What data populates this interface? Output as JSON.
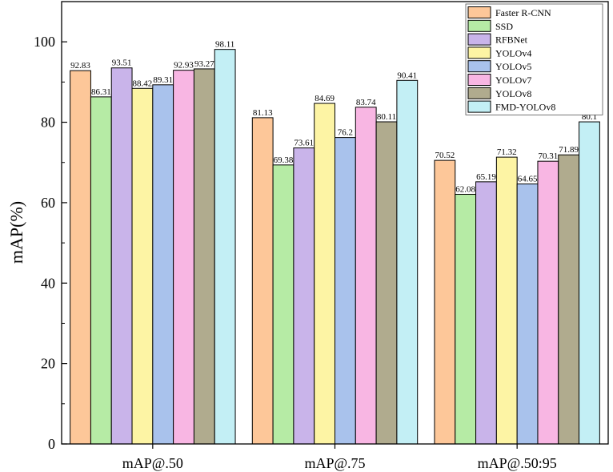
{
  "chart_data": {
    "type": "bar",
    "title": "",
    "xlabel": "",
    "ylabel": "mAP(%)",
    "ylim": [
      0,
      110
    ],
    "yticks": [
      0,
      20,
      40,
      60,
      80,
      100
    ],
    "grid": false,
    "legend_position": "top-right",
    "categories": [
      "mAP@.50",
      "mAP@.75",
      "mAP@.50:95"
    ],
    "series": [
      {
        "name": "Faster R-CNN",
        "color": "#fdc799",
        "values": [
          92.83,
          81.13,
          70.52
        ],
        "labels": [
          "92.83",
          "81.13",
          "70.52"
        ]
      },
      {
        "name": "SSD",
        "color": "#b6eba5",
        "values": [
          86.31,
          69.38,
          62.08
        ],
        "labels": [
          "86.31",
          "69.38",
          "62.08"
        ]
      },
      {
        "name": "RFBNet",
        "color": "#c9b4ea",
        "values": [
          93.51,
          73.61,
          65.19
        ],
        "labels": [
          "93.51",
          "73.61",
          "65.19"
        ]
      },
      {
        "name": "YOLOv4",
        "color": "#fdf4a4",
        "values": [
          88.42,
          84.69,
          71.32
        ],
        "labels": [
          "88.42",
          "84.69",
          "71.32"
        ]
      },
      {
        "name": "YOLOv5",
        "color": "#a9c2ec",
        "values": [
          89.31,
          76.2,
          64.65
        ],
        "labels": [
          "89.31",
          "76.2",
          "64.65"
        ]
      },
      {
        "name": "YOLOv7",
        "color": "#f8b6e3",
        "values": [
          92.93,
          83.74,
          70.31
        ],
        "labels": [
          "92.93",
          "83.74",
          "70.31"
        ]
      },
      {
        "name": "YOLOv8",
        "color": "#b0ab8e",
        "values": [
          93.27,
          80.11,
          71.89
        ],
        "labels": [
          "93.27",
          "80.11",
          "71.89"
        ]
      },
      {
        "name": "FMD-YOLOv8",
        "color": "#c3eff5",
        "values": [
          98.11,
          90.41,
          80.1
        ],
        "labels": [
          "98.11",
          "90.41",
          "80.1"
        ]
      }
    ]
  }
}
